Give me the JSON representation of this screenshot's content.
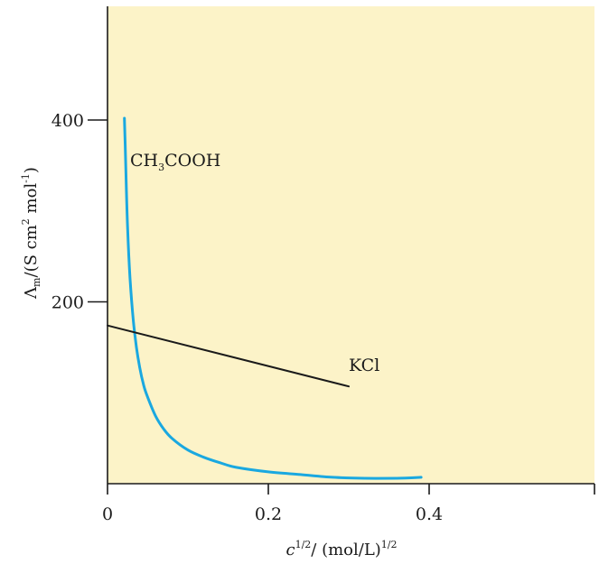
{
  "chart_data": {
    "type": "line",
    "xlim": [
      0,
      0.6
    ],
    "ylim": [
      0,
      500
    ],
    "x_ticks": [
      0,
      0.2,
      0.4
    ],
    "x_tick_labels": [
      "0",
      "0.2",
      "0.4"
    ],
    "y_ticks": [
      200,
      400
    ],
    "y_tick_labels": [
      "200",
      "400"
    ],
    "grid": false,
    "xlabel": {
      "main": "c",
      "main_sup": "1/2",
      "unit": "/ (mol/L)",
      "unit_sup": "1/2"
    },
    "ylabel": {
      "symbol": "Λ",
      "symbol_sub": "m",
      "unit_open": "/(S cm",
      "unit_sup1": "2",
      "unit_mid": " mol",
      "unit_sup2": "-1",
      "unit_close": ")"
    },
    "annotations": {
      "ch3cooh": {
        "pre": "CH",
        "sub": "3",
        "post": "COOH"
      },
      "kcl": "KCl"
    },
    "colors": {
      "plot_background": "#fcf3c8",
      "ch3cooh_line": "#1aa8e0",
      "kcl_line": "#1a1a1a",
      "axis": "#1a1a1a"
    },
    "series": [
      {
        "name": "CH3COOH",
        "x": [
          0.021,
          0.022,
          0.023,
          0.025,
          0.028,
          0.032,
          0.036,
          0.04,
          0.045,
          0.05,
          0.06,
          0.07,
          0.08,
          0.1,
          0.12,
          0.14,
          0.16,
          0.2,
          0.24,
          0.28,
          0.32,
          0.36,
          0.39
        ],
        "y": [
          402,
          372,
          338,
          280,
          226,
          180,
          150,
          128,
          108,
          95,
          74,
          60,
          50,
          37,
          29,
          23,
          18,
          13,
          10,
          7,
          6,
          6,
          7
        ]
      },
      {
        "name": "KCl",
        "x": [
          0,
          0.3
        ],
        "y": [
          174,
          107
        ]
      }
    ]
  }
}
